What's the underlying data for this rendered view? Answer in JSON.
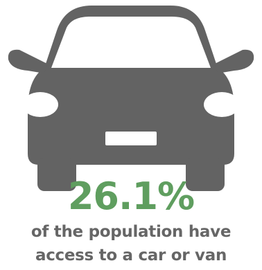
{
  "stat": {
    "value": "26.1%",
    "caption_line_1": "of the population have",
    "caption_line_2": "access to a car or van"
  },
  "icon": {
    "name": "car-icon"
  },
  "colors": {
    "icon": "#636363",
    "accent": "#5f9e5f",
    "text": "#666666",
    "background": "#ffffff"
  }
}
